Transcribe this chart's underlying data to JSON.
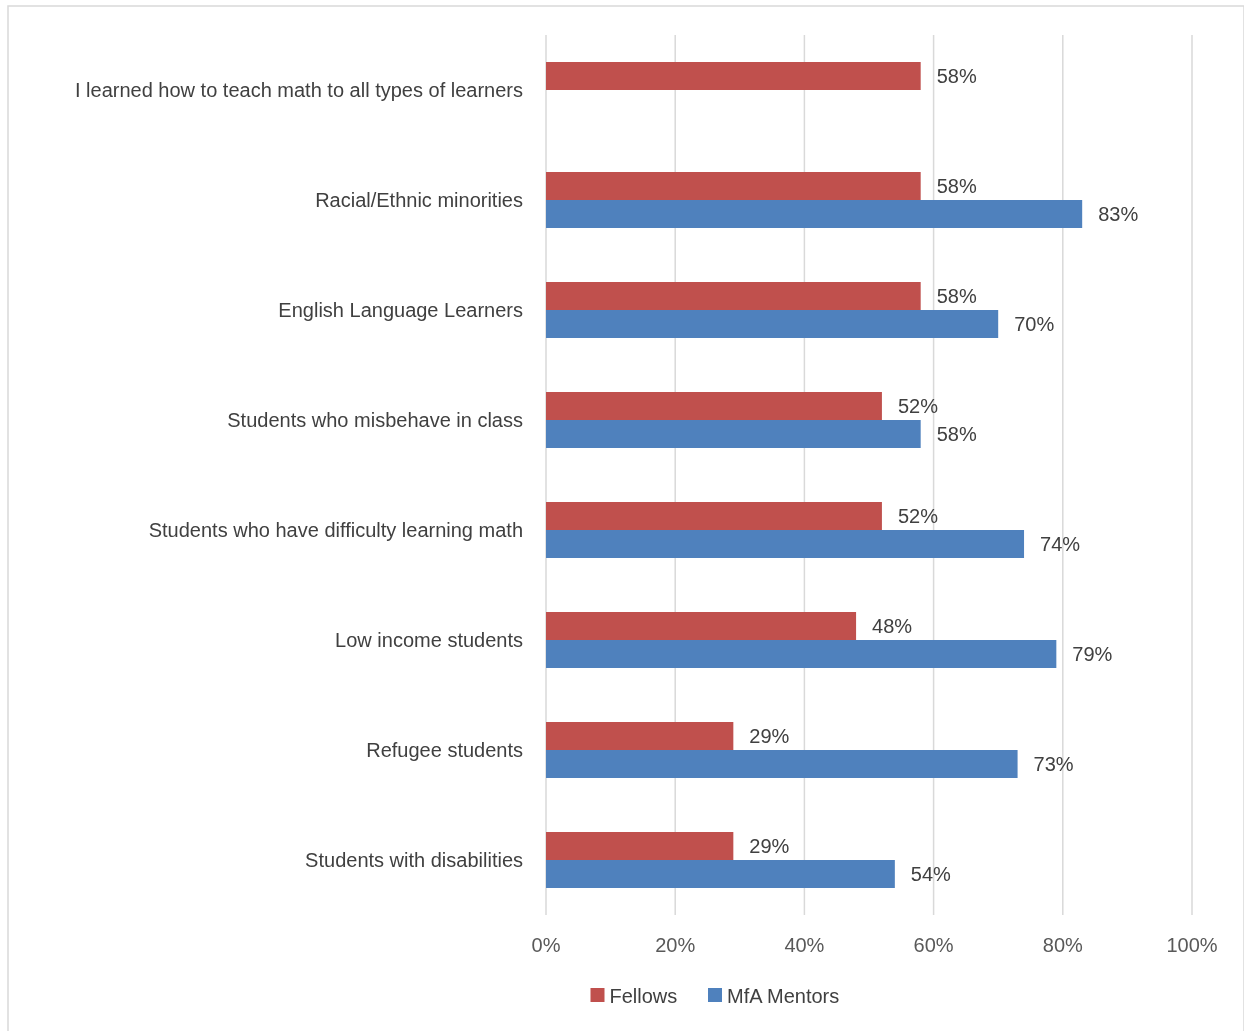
{
  "chart_data": {
    "type": "bar",
    "orientation": "horizontal",
    "categories": [
      "I learned how to teach math to all types of learners",
      "Racial/Ethnic minorities",
      "English Language Learners",
      "Students who misbehave in class",
      "Students who have difficulty learning math",
      "Low income students",
      "Refugee students",
      "Students with disabilities"
    ],
    "series": [
      {
        "name": "Fellows",
        "color": "#c0504d",
        "values": [
          58,
          58,
          58,
          52,
          52,
          48,
          29,
          29
        ],
        "value_labels": [
          "58%",
          "58%",
          "58%",
          "52%",
          "52%",
          "48%",
          "29%",
          "29%"
        ]
      },
      {
        "name": "MfA Mentors",
        "color": "#4f81bd",
        "values": [
          null,
          83,
          70,
          58,
          74,
          79,
          73,
          54
        ],
        "value_labels": [
          null,
          "83%",
          "70%",
          "58%",
          "74%",
          "79%",
          "73%",
          "54%"
        ]
      }
    ],
    "xlim": [
      0,
      100
    ],
    "xticks": [
      {
        "value": 0,
        "label": "0%"
      },
      {
        "value": 20,
        "label": "20%"
      },
      {
        "value": 40,
        "label": "40%"
      },
      {
        "value": 60,
        "label": "60%"
      },
      {
        "value": 80,
        "label": "80%"
      },
      {
        "value": 100,
        "label": "100%"
      }
    ],
    "grid": "x",
    "legend": "bottom"
  }
}
